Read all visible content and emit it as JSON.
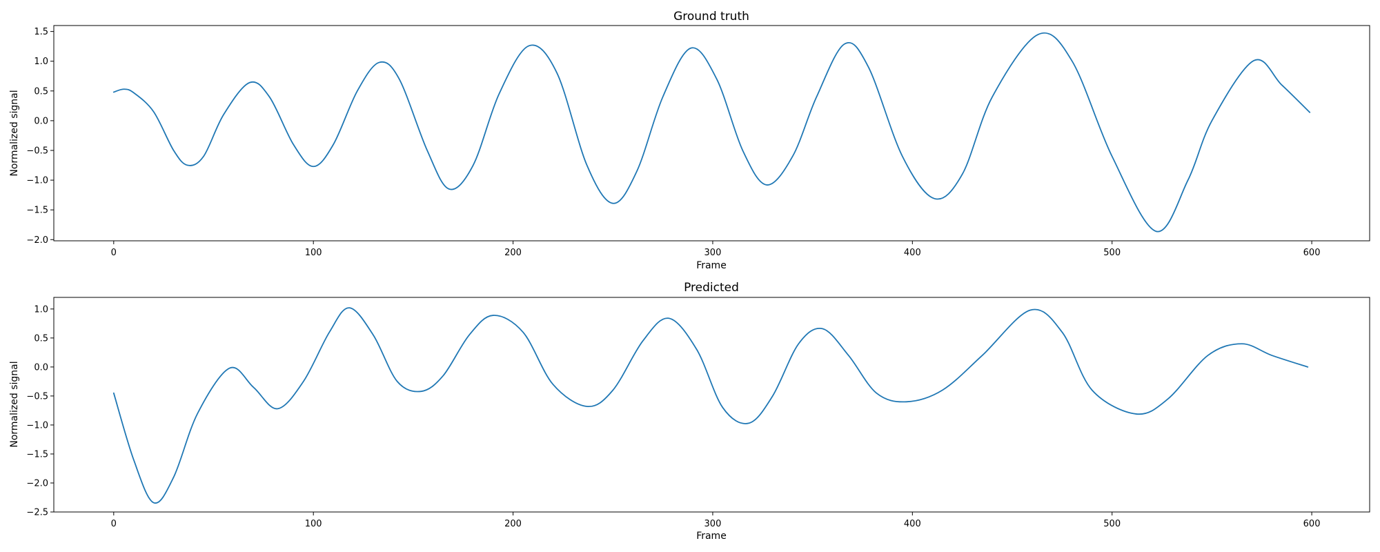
{
  "chart_data": [
    {
      "type": "line",
      "title": "Ground truth",
      "xlabel": "Frame",
      "ylabel": "Normalized signal",
      "xlim": [
        -30,
        629
      ],
      "ylim": [
        -2.02,
        1.6
      ],
      "xticks": [
        0,
        100,
        200,
        300,
        400,
        500,
        600
      ],
      "yticks": [
        -2.0,
        -1.5,
        -1.0,
        -0.5,
        0.0,
        0.5,
        1.0,
        1.5
      ],
      "grid": false,
      "series": [
        {
          "color": "#1f77b4",
          "points": [
            [
              0,
              0.48
            ],
            [
              5,
              0.53
            ],
            [
              10,
              0.47
            ],
            [
              20,
              0.15
            ],
            [
              30,
              -0.5
            ],
            [
              37,
              -0.75
            ],
            [
              45,
              -0.6
            ],
            [
              55,
              0.1
            ],
            [
              68,
              0.64
            ],
            [
              78,
              0.4
            ],
            [
              90,
              -0.4
            ],
            [
              100,
              -0.77
            ],
            [
              110,
              -0.4
            ],
            [
              122,
              0.5
            ],
            [
              133,
              0.98
            ],
            [
              143,
              0.7
            ],
            [
              157,
              -0.5
            ],
            [
              168,
              -1.15
            ],
            [
              180,
              -0.75
            ],
            [
              193,
              0.45
            ],
            [
              208,
              1.26
            ],
            [
              222,
              0.8
            ],
            [
              237,
              -0.75
            ],
            [
              250,
              -1.39
            ],
            [
              262,
              -0.85
            ],
            [
              275,
              0.4
            ],
            [
              289,
              1.22
            ],
            [
              302,
              0.7
            ],
            [
              315,
              -0.5
            ],
            [
              327,
              -1.08
            ],
            [
              340,
              -0.6
            ],
            [
              352,
              0.4
            ],
            [
              366,
              1.29
            ],
            [
              378,
              0.9
            ],
            [
              395,
              -0.6
            ],
            [
              411,
              -1.31
            ],
            [
              425,
              -0.9
            ],
            [
              440,
              0.4
            ],
            [
              463,
              1.45
            ],
            [
              480,
              1.0
            ],
            [
              500,
              -0.6
            ],
            [
              522,
              -1.86
            ],
            [
              538,
              -1.0
            ],
            [
              550,
              0.0
            ],
            [
              571,
              1.01
            ],
            [
              585,
              0.6
            ],
            [
              599,
              0.14
            ]
          ]
        }
      ]
    },
    {
      "type": "line",
      "title": "Predicted",
      "xlabel": "Frame",
      "ylabel": "Normalized signal",
      "xlim": [
        -30,
        629
      ],
      "ylim": [
        -2.5,
        1.2
      ],
      "xticks": [
        0,
        100,
        200,
        300,
        400,
        500,
        600
      ],
      "yticks": [
        -2.5,
        -2.0,
        -1.5,
        -1.0,
        -0.5,
        0.0,
        0.5,
        1.0
      ],
      "grid": false,
      "series": [
        {
          "color": "#1f77b4",
          "points": [
            [
              0,
              -0.45
            ],
            [
              10,
              -1.6
            ],
            [
              20,
              -2.34
            ],
            [
              30,
              -1.9
            ],
            [
              42,
              -0.8
            ],
            [
              58,
              -0.02
            ],
            [
              70,
              -0.35
            ],
            [
              82,
              -0.72
            ],
            [
              95,
              -0.25
            ],
            [
              108,
              0.6
            ],
            [
              118,
              1.02
            ],
            [
              130,
              0.55
            ],
            [
              142,
              -0.25
            ],
            [
              154,
              -0.42
            ],
            [
              165,
              -0.15
            ],
            [
              178,
              0.55
            ],
            [
              190,
              0.89
            ],
            [
              205,
              0.6
            ],
            [
              220,
              -0.3
            ],
            [
              237,
              -0.68
            ],
            [
              250,
              -0.4
            ],
            [
              265,
              0.45
            ],
            [
              278,
              0.84
            ],
            [
              292,
              0.3
            ],
            [
              305,
              -0.7
            ],
            [
              318,
              -0.97
            ],
            [
              330,
              -0.5
            ],
            [
              343,
              0.4
            ],
            [
              355,
              0.66
            ],
            [
              368,
              0.2
            ],
            [
              382,
              -0.45
            ],
            [
              397,
              -0.6
            ],
            [
              415,
              -0.4
            ],
            [
              435,
              0.2
            ],
            [
              459,
              0.98
            ],
            [
              475,
              0.6
            ],
            [
              490,
              -0.4
            ],
            [
              512,
              -0.81
            ],
            [
              528,
              -0.55
            ],
            [
              548,
              0.2
            ],
            [
              565,
              0.4
            ],
            [
              580,
              0.2
            ],
            [
              598,
              0.0
            ]
          ]
        }
      ]
    }
  ]
}
